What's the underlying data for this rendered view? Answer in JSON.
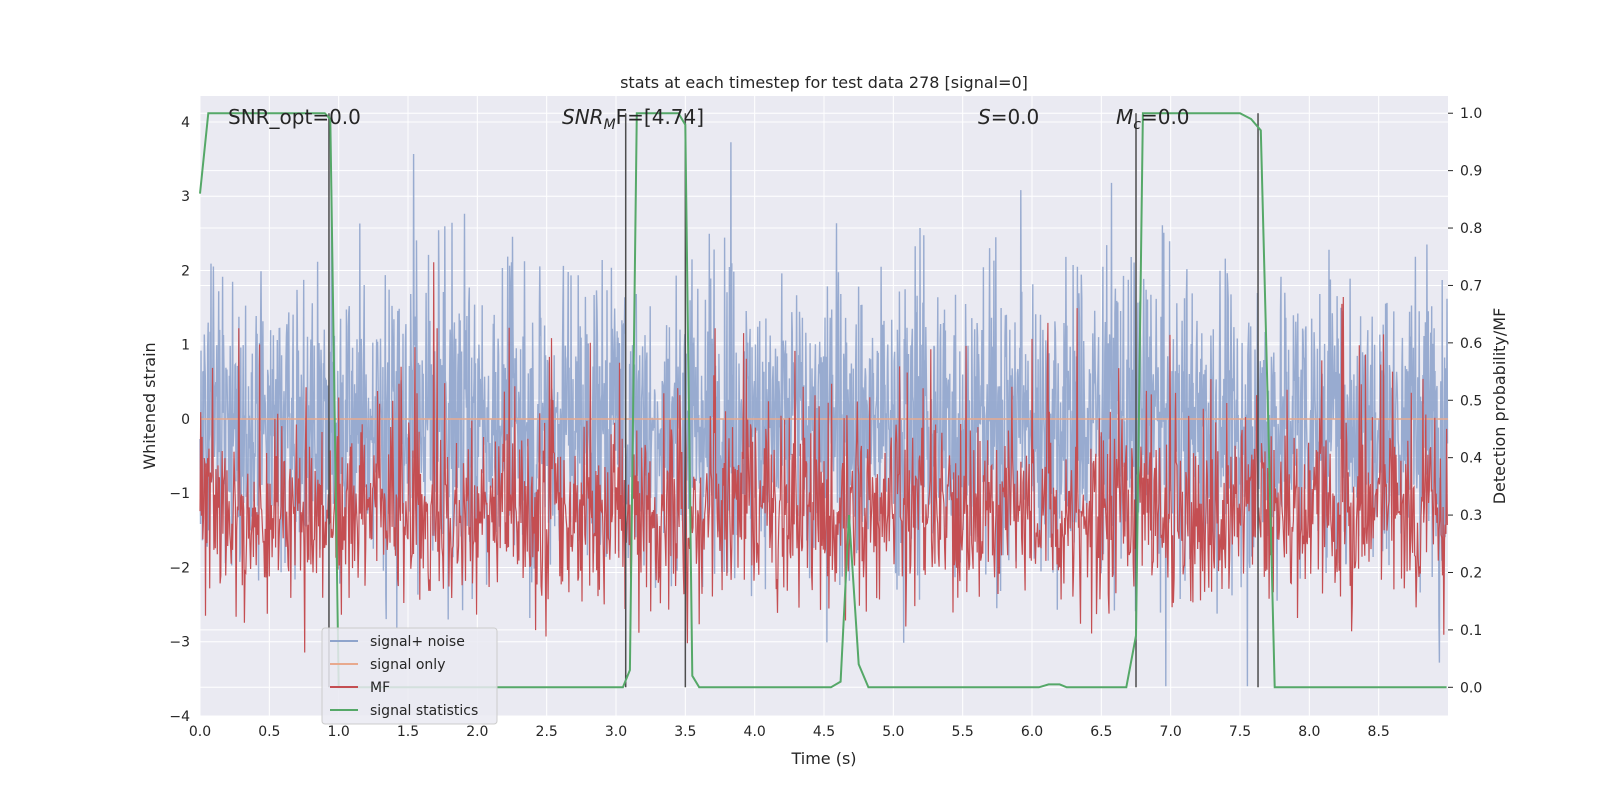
{
  "chart_data": {
    "type": "line",
    "title": "stats at each timestep for test data 278 [signal=0]",
    "xlabel": "Time (s)",
    "ylabel": "Whitened strain",
    "y2label": "Detection probability/MF",
    "xlim": [
      0,
      9
    ],
    "ylim": [
      -4,
      4.35
    ],
    "y2lim": [
      -0.05,
      1.03
    ],
    "x_ticks": [
      "0.0",
      "0.5",
      "1.0",
      "1.5",
      "2.0",
      "2.5",
      "3.0",
      "3.5",
      "4.0",
      "4.5",
      "5.0",
      "5.5",
      "6.0",
      "6.5",
      "7.0",
      "7.5",
      "8.0",
      "8.5"
    ],
    "y_ticks": [
      "4",
      "3",
      "2",
      "1",
      "0",
      "−1",
      "−2",
      "−3",
      "−4"
    ],
    "y2_ticks": [
      "1.0",
      "0.9",
      "0.8",
      "0.7",
      "0.6",
      "0.5",
      "0.4",
      "0.3",
      "0.2",
      "0.1",
      "0.0"
    ],
    "grid": true,
    "legend_position": "lower-left",
    "annotations": {
      "snr_opt": "SNR_opt=0.0",
      "snr_mf_var": "SNR",
      "snr_mf_sub": "M",
      "snr_mf_rest": "F=[4.74]",
      "s_var": "S",
      "s_rest": "=0.0",
      "mc_var": "M",
      "mc_sub": "c",
      "mc_rest": "=0.0"
    },
    "series": [
      {
        "name": "signal+ noise",
        "color": "#8fa4cc",
        "description_values": "whitened noise, roughly ±2.5"
      },
      {
        "name": "signal only",
        "color": "#e8a98e",
        "values": "zero"
      },
      {
        "name": "MF",
        "color": "#c44e52",
        "range": [
          0.05,
          0.6
        ]
      },
      {
        "name": "signal statistics",
        "color": "#55a868",
        "axis": "right",
        "x": [
          0.0,
          0.06,
          0.9,
          0.94,
          1.0,
          3.05,
          3.1,
          3.15,
          3.45,
          3.5,
          3.55,
          3.6,
          3.65,
          4.55,
          4.62,
          4.68,
          4.75,
          4.82,
          6.05,
          6.12,
          6.2,
          6.25,
          6.68,
          6.75,
          6.8,
          7.5,
          7.58,
          7.65,
          7.7,
          7.75,
          8.99
        ],
        "values": [
          0.86,
          1.0,
          1.0,
          0.99,
          0.0,
          0.0,
          0.03,
          1.0,
          1.0,
          0.98,
          0.02,
          0.0,
          0.0,
          0.0,
          0.01,
          0.3,
          0.04,
          0.0,
          0.0,
          0.005,
          0.005,
          0.0,
          0.0,
          0.09,
          1.0,
          1.0,
          0.99,
          0.97,
          0.5,
          0.0,
          0.0
        ]
      }
    ],
    "vertical_markers": [
      0.93,
      3.07,
      3.5,
      6.75,
      7.63
    ]
  },
  "legend": {
    "items": [
      {
        "label": "signal+ noise",
        "color": "#8fa4cc"
      },
      {
        "label": "signal only",
        "color": "#e8a98e"
      },
      {
        "label": "MF",
        "color": "#c44e52"
      },
      {
        "label": "signal statistics",
        "color": "#55a868"
      }
    ]
  },
  "colors": {
    "plot_bg": "#eaeaf2",
    "grid": "#ffffff",
    "marker": "#4d4d4d"
  }
}
